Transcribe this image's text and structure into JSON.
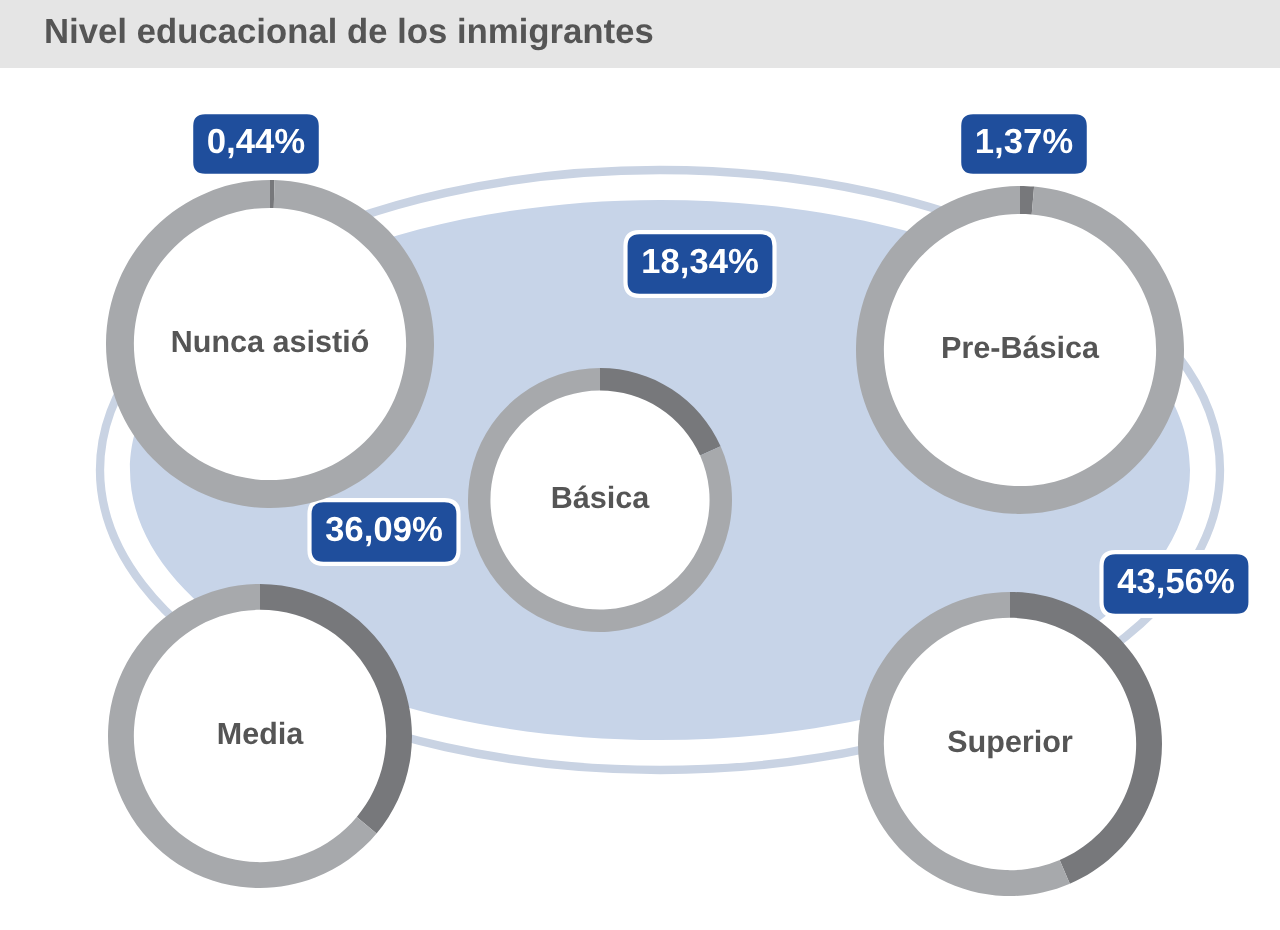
{
  "chart_data": [
    {
      "type": "other",
      "title": "Nivel educacional de los inmigrantes"
    },
    {
      "type": "donut",
      "title": "Nunca asistió",
      "categories": [
        null,
        null
      ],
      "values": [
        0.44,
        99.56
      ],
      "colors": [
        "#77787b",
        "#a7a9ac"
      ],
      "value_labels": [
        "0,44%",
        null
      ]
    },
    {
      "type": "donut",
      "title": "Básica",
      "categories": [
        null,
        null
      ],
      "values": [
        18.34,
        81.66
      ],
      "colors": [
        "#77787b",
        "#a7a9ac"
      ],
      "value_labels": [
        "18,34%",
        null
      ]
    },
    {
      "type": "donut",
      "title": "Pre-Básica",
      "categories": [
        null,
        null
      ],
      "values": [
        1.37,
        98.63
      ],
      "colors": [
        "#77787b",
        "#a7a9ac"
      ],
      "value_labels": [
        "1,37%",
        null
      ]
    },
    {
      "type": "donut",
      "title": "Media",
      "categories": [
        null,
        null
      ],
      "values": [
        36.09,
        63.91
      ],
      "colors": [
        "#77787b",
        "#a7a9ac"
      ],
      "value_labels": [
        "36,09%",
        null
      ]
    },
    {
      "type": "donut",
      "title": "Superior",
      "categories": [
        null,
        null
      ],
      "values": [
        43.56,
        56.44
      ],
      "colors": [
        "#77787b",
        "#a7a9ac"
      ],
      "value_labels": [
        "43,56%",
        null
      ]
    }
  ]
}
